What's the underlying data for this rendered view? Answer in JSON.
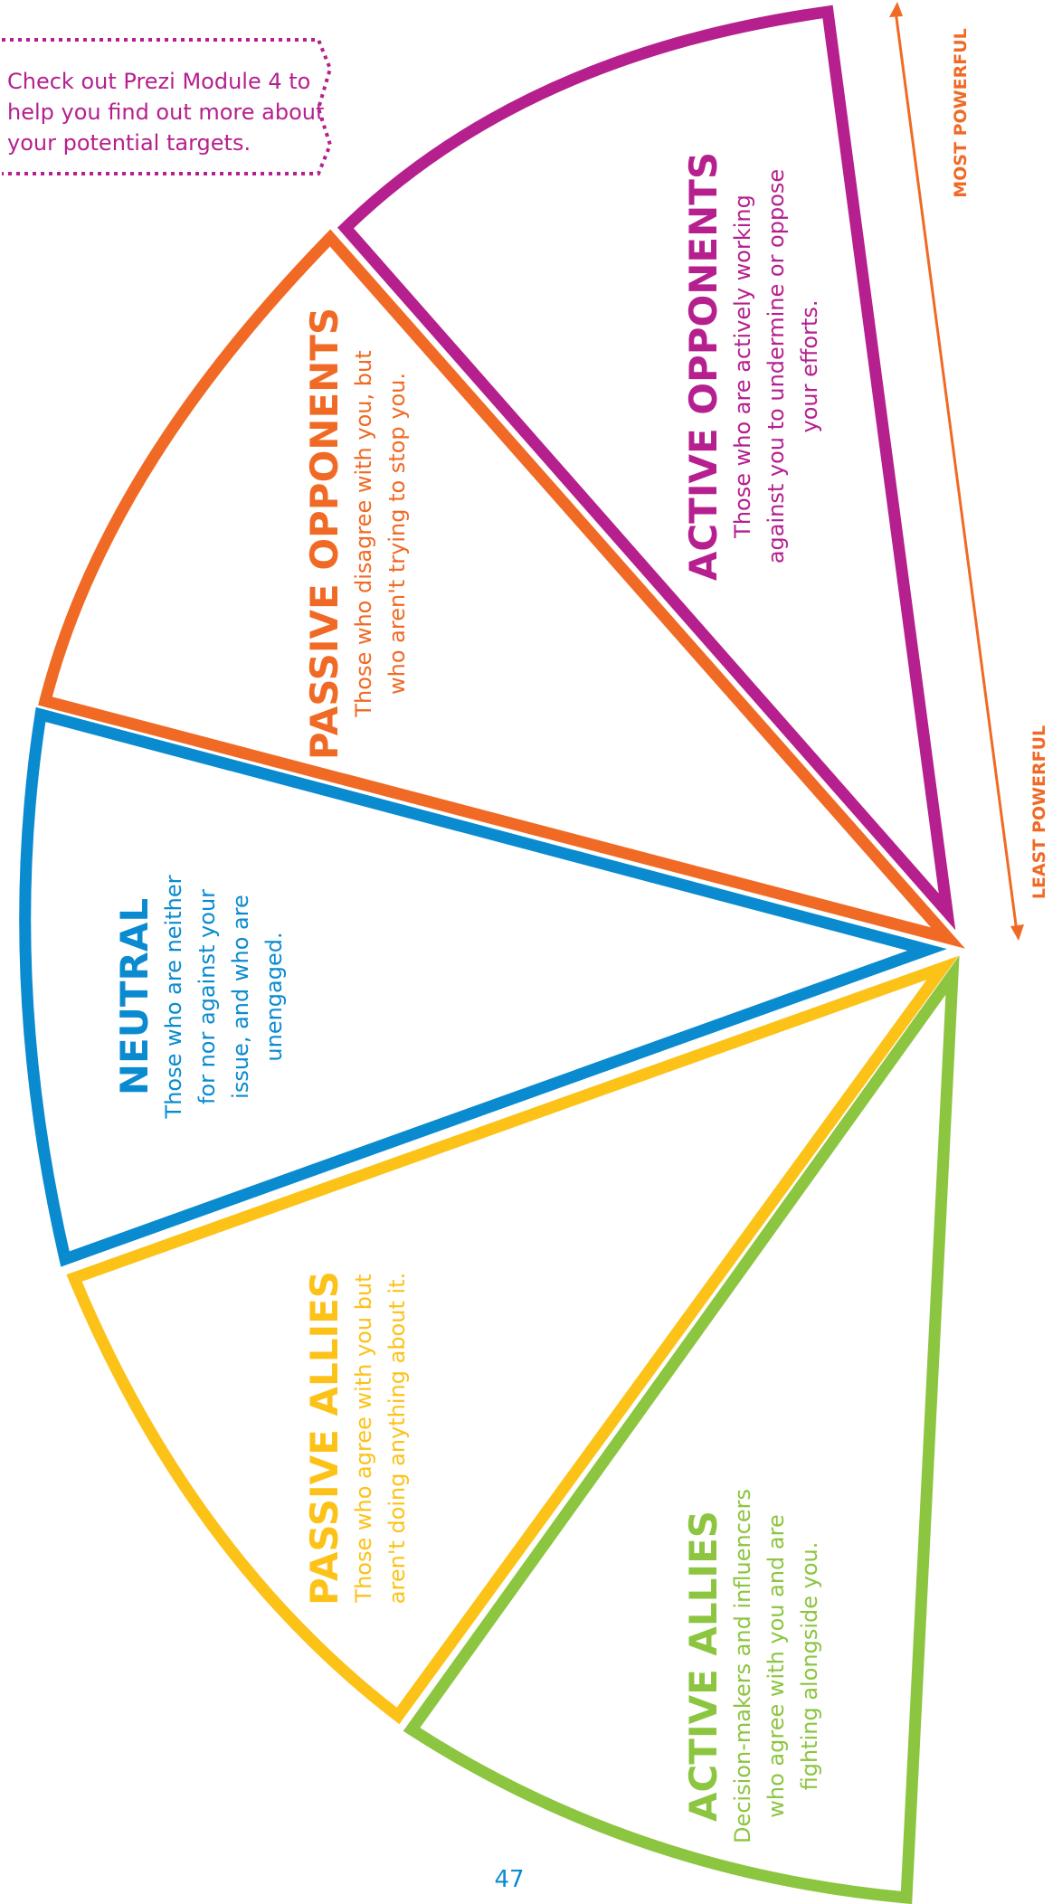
{
  "callout": {
    "lines": [
      "Check out Prezi Module 4 to",
      "help you find out more about",
      "your potential targets."
    ],
    "color": "#b5208e"
  },
  "axis": {
    "most_label": "MOST POWERFUL",
    "least_label": "LEAST POWERFUL",
    "color": "#f06a25"
  },
  "segments": [
    {
      "id": "active-opponents",
      "title": "ACTIVE OPPONENTS",
      "description": [
        "Those who are actively working",
        "against you to undermine or oppose",
        "your efforts."
      ],
      "color": "#b5208e"
    },
    {
      "id": "passive-opponents",
      "title": "PASSIVE OPPONENTS",
      "description": [
        "Those who disagree with you, but",
        "who aren't trying to stop you."
      ],
      "color": "#f06a25"
    },
    {
      "id": "neutral",
      "title": "NEUTRAL",
      "description": [
        "Those who are neither",
        "for nor against your",
        "issue, and who are",
        "unengaged."
      ],
      "color": "#0a8bd0"
    },
    {
      "id": "passive-allies",
      "title": "PASSIVE ALLIES",
      "description": [
        "Those who agree with you but",
        "aren't doing anything about it."
      ],
      "color": "#fcc218"
    },
    {
      "id": "active-allies",
      "title": "ACTIVE ALLIES",
      "description": [
        "Decision-makers and influencers",
        "who agree with you and are",
        "fighting alongside you."
      ],
      "color": "#8cc540"
    }
  ],
  "page_number": "47"
}
